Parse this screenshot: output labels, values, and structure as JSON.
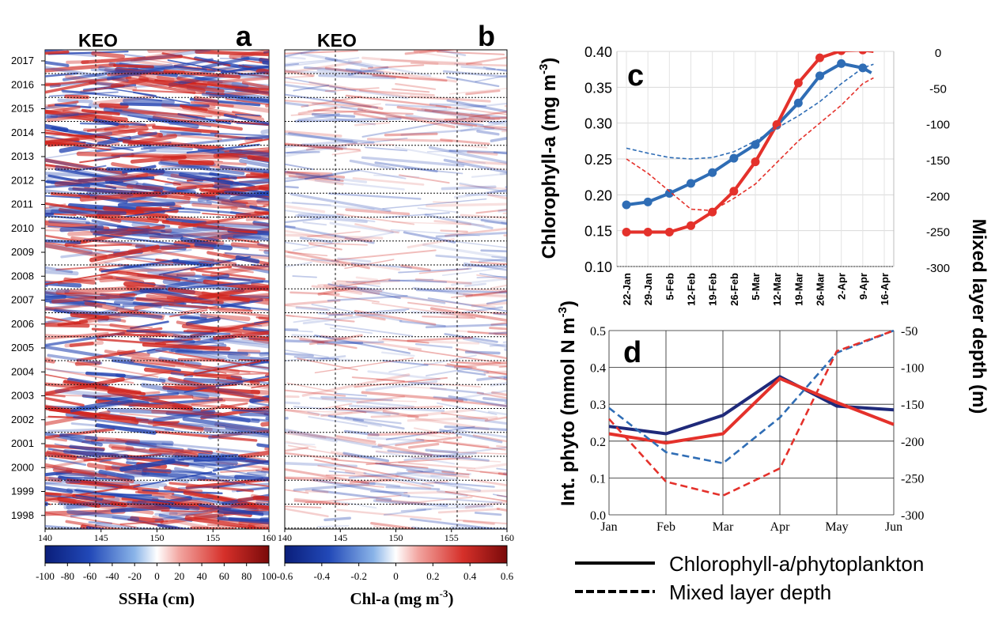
{
  "panels": {
    "a": {
      "letter": "a",
      "station": "KEO",
      "cbar_label": "SSHa (cm)"
    },
    "b": {
      "letter": "b",
      "station": "KEO",
      "cbar_label_main": "Chl-a (mg m",
      "cbar_label_sup": "-3",
      "cbar_label_end": ")"
    },
    "c": {
      "letter": "c"
    },
    "d": {
      "letter": "d"
    }
  },
  "colors": {
    "blue_line": "#2f6db5",
    "red_line": "#e4312b",
    "navy_line": "#1f2a7a",
    "cmap_neg": "#2041b0",
    "cmap_pos": "#d0251f"
  },
  "legend": {
    "solid": "Chlorophyll-a/phytoplankton",
    "dashed": "Mixed layer depth"
  },
  "chart_data": [
    {
      "type": "heatmap",
      "panel": "a",
      "title": "KEO",
      "x_ticks": [
        "140",
        "145",
        "150",
        "155",
        "160"
      ],
      "y_ticks": [
        "2017",
        "2016",
        "2015",
        "2014",
        "2013",
        "2012",
        "2011",
        "2010",
        "2009",
        "2008",
        "2007",
        "2006",
        "2005",
        "2004",
        "2003",
        "2002",
        "2001",
        "2000",
        "1999",
        "1998"
      ],
      "colorbar": {
        "label": "SSHa (cm)",
        "ticks": [
          "-100",
          "-80",
          "-60",
          "-40",
          "-20",
          "0",
          "20",
          "40",
          "60",
          "80",
          "100"
        ],
        "range": [
          -100,
          100
        ]
      }
    },
    {
      "type": "heatmap",
      "panel": "b",
      "title": "KEO",
      "x_ticks": [
        "140",
        "145",
        "150",
        "155",
        "160"
      ],
      "colorbar": {
        "label": "Chl-a (mg m-3)",
        "ticks": [
          "-0.6",
          "-0.4",
          "-0.2",
          "0",
          "0.2",
          "0.4",
          "0.6"
        ],
        "range": [
          -0.6,
          0.6
        ]
      }
    },
    {
      "type": "line",
      "panel": "c",
      "x_categories": [
        "22-Jan",
        "29-Jan",
        "5-Feb",
        "12-Feb",
        "19-Feb",
        "26-Feb",
        "5-Mar",
        "12-Mar",
        "19-Mar",
        "26-Mar",
        "2-Apr",
        "9-Apr",
        "16-Apr"
      ],
      "ylabel": "Chlorophyll-a (mg m-3)",
      "ylabel_main": "Chlorophyll-a (mg m",
      "ylabel_sup": "-3",
      "ylabel_end": ")",
      "ylim": [
        0.1,
        0.4
      ],
      "y_ticks": [
        "0.10",
        "0.15",
        "0.20",
        "0.25",
        "0.30",
        "0.35",
        "0.40"
      ],
      "y2label": "Mixed layer depth (m)",
      "y2lim": [
        -300,
        0
      ],
      "y2_ticks": [
        "0",
        "-50",
        "-100",
        "-150",
        "-200",
        "-250",
        "-300"
      ],
      "series": [
        {
          "color": "#2f6db5",
          "style": "solid",
          "markers": true,
          "x": [
            0,
            1,
            2,
            3,
            4,
            5,
            6,
            7,
            8,
            9,
            10,
            11,
            11.4
          ],
          "values": [
            0.186,
            0.19,
            0.202,
            0.216,
            0.231,
            0.251,
            0.27,
            0.297,
            0.328,
            0.366,
            0.383,
            0.377,
            0.37
          ]
        },
        {
          "color": "#e4312b",
          "style": "solid",
          "markers": true,
          "x": [
            0,
            1,
            2,
            3,
            4,
            5,
            6,
            7,
            8,
            9,
            10,
            11,
            11.5
          ],
          "values": [
            0.148,
            0.148,
            0.148,
            0.157,
            0.176,
            0.205,
            0.246,
            0.298,
            0.356,
            0.391,
            0.401,
            0.402,
            0.4
          ]
        },
        {
          "color": "#2f6db5",
          "style": "dashed",
          "axis": "right",
          "x": [
            0,
            1,
            2,
            3,
            4,
            5,
            6,
            7,
            8,
            9,
            10,
            11,
            11.5
          ],
          "values": [
            -135,
            -142,
            -148,
            -150,
            -148,
            -140,
            -125,
            -107,
            -90,
            -70,
            -45,
            -23,
            -18
          ]
        },
        {
          "color": "#e4312b",
          "style": "dashed",
          "axis": "right",
          "x": [
            0,
            1,
            2,
            3,
            4,
            5,
            6,
            7,
            8,
            9,
            10,
            11,
            11.5
          ],
          "values": [
            -150,
            -170,
            -195,
            -220,
            -222,
            -205,
            -185,
            -155,
            -125,
            -100,
            -75,
            -45,
            -37
          ]
        }
      ]
    },
    {
      "type": "line",
      "panel": "d",
      "categories": [
        "Jan",
        "Feb",
        "Mar",
        "Apr",
        "May",
        "Jun"
      ],
      "ylabel": "Int. phyto (mmol N m-3)",
      "ylabel_main": "Int. phyto (mmol N m",
      "ylabel_sup": "-3",
      "ylabel_end": ")",
      "ylim": [
        0.0,
        0.5
      ],
      "y_ticks": [
        "0.0",
        "0.1",
        "0.2",
        "0.3",
        "0.4",
        "0.5"
      ],
      "y2lim": [
        -300,
        -50
      ],
      "y2_ticks": [
        "-50",
        "-100",
        "-150",
        "-200",
        "-250",
        "-300"
      ],
      "series": [
        {
          "color": "#1f2a7a",
          "style": "solid",
          "values": [
            0.24,
            0.22,
            0.27,
            0.375,
            0.295,
            0.285
          ]
        },
        {
          "color": "#e4312b",
          "style": "solid",
          "values": [
            0.22,
            0.195,
            0.22,
            0.37,
            0.305,
            0.245
          ]
        },
        {
          "color": "#2f6db5",
          "style": "dashed",
          "axis": "right",
          "values": [
            -155,
            -215,
            -230,
            -168,
            -80,
            -50
          ]
        },
        {
          "color": "#e4312b",
          "style": "dashed",
          "axis": "right",
          "values": [
            -170,
            -255,
            -274,
            -237,
            -78,
            -50
          ]
        }
      ]
    }
  ]
}
